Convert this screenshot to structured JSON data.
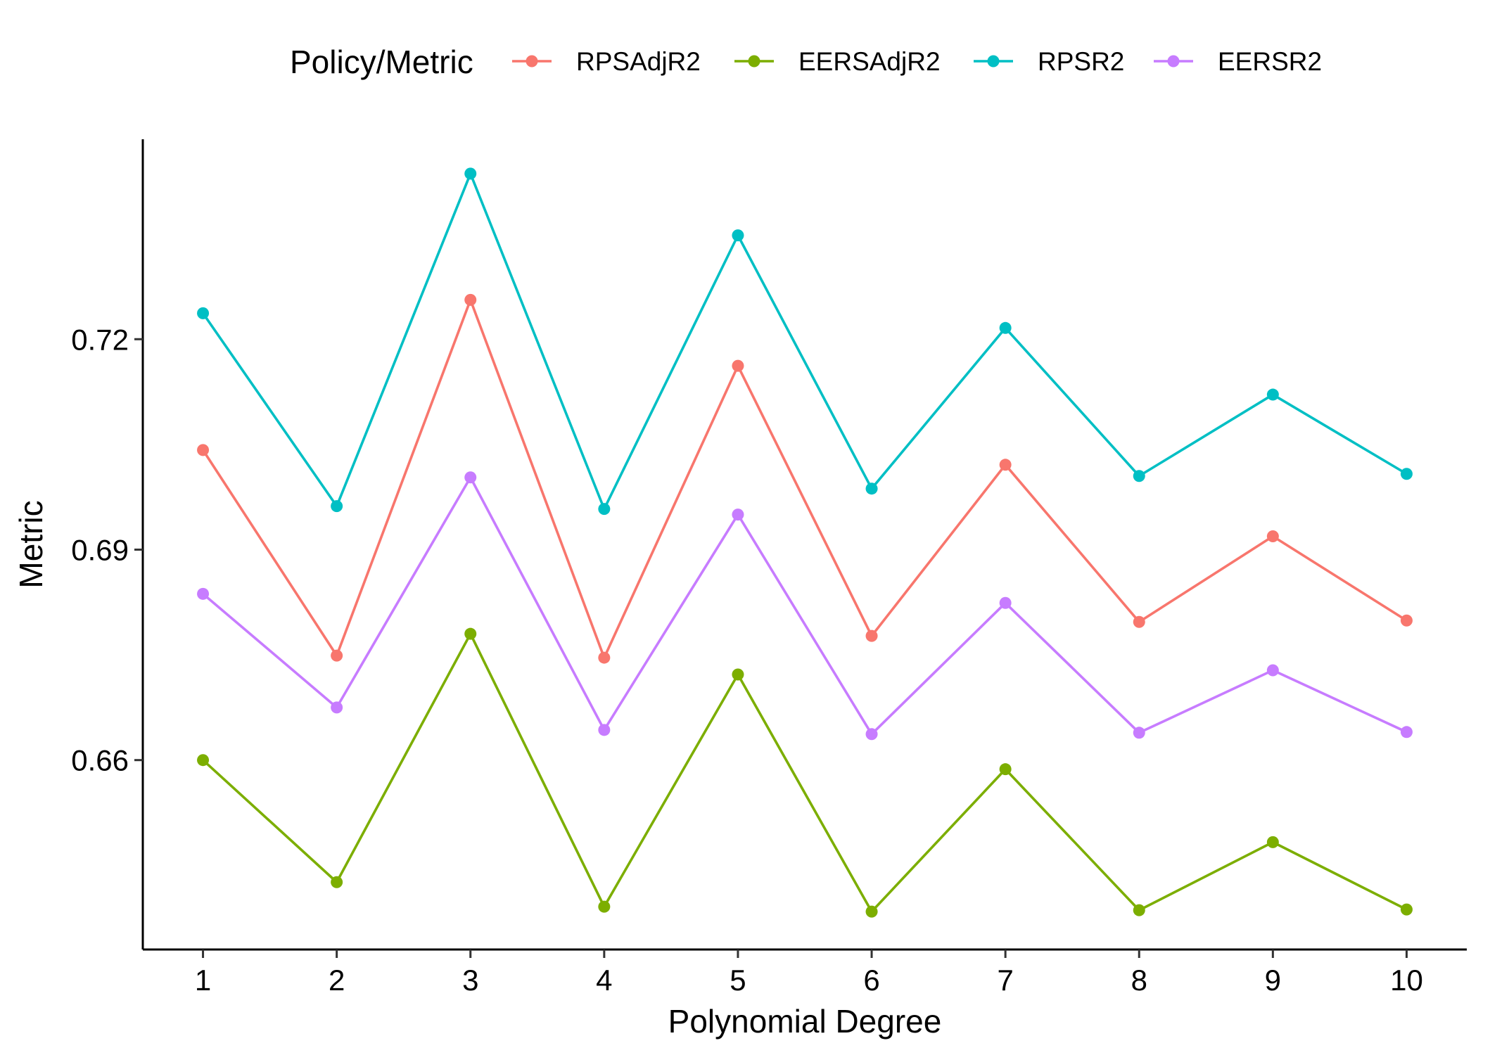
{
  "chart_data": {
    "type": "line",
    "title": "",
    "xlabel": "Polynomial Degree",
    "ylabel": "Metric",
    "x": [
      1,
      2,
      3,
      4,
      5,
      6,
      7,
      8,
      9,
      10
    ],
    "x_tick_labels": [
      "1",
      "2",
      "3",
      "4",
      "5",
      "6",
      "7",
      "8",
      "9",
      "10"
    ],
    "y_ticks": [
      0.66,
      0.69,
      0.72
    ],
    "y_tick_labels": [
      "0.66",
      "0.69",
      "0.72"
    ],
    "ylim": [
      0.633,
      0.7485
    ],
    "xlim": [
      0.55,
      10.45
    ],
    "grid": false,
    "legend": {
      "title": "Policy/Metric",
      "position": "top"
    },
    "series": [
      {
        "name": "RPSAdjR2",
        "color": "#F8766D",
        "values": [
          0.7042,
          0.6749,
          0.7256,
          0.6746,
          0.7162,
          0.6777,
          0.7021,
          0.6797,
          0.6919,
          0.6799
        ]
      },
      {
        "name": "EERSAdjR2",
        "color": "#7CAE00",
        "values": [
          0.66,
          0.6426,
          0.678,
          0.6391,
          0.6722,
          0.6384,
          0.6587,
          0.6386,
          0.6483,
          0.6387
        ]
      },
      {
        "name": "RPSR2",
        "color": "#00BFC4",
        "values": [
          0.7237,
          0.6962,
          0.7436,
          0.6958,
          0.7348,
          0.6987,
          0.7216,
          0.7005,
          0.7121,
          0.7008
        ]
      },
      {
        "name": "EERSR2",
        "color": "#C77CFF",
        "values": [
          0.6837,
          0.6675,
          0.7003,
          0.6643,
          0.695,
          0.6637,
          0.6824,
          0.6639,
          0.6728,
          0.664
        ]
      }
    ]
  }
}
